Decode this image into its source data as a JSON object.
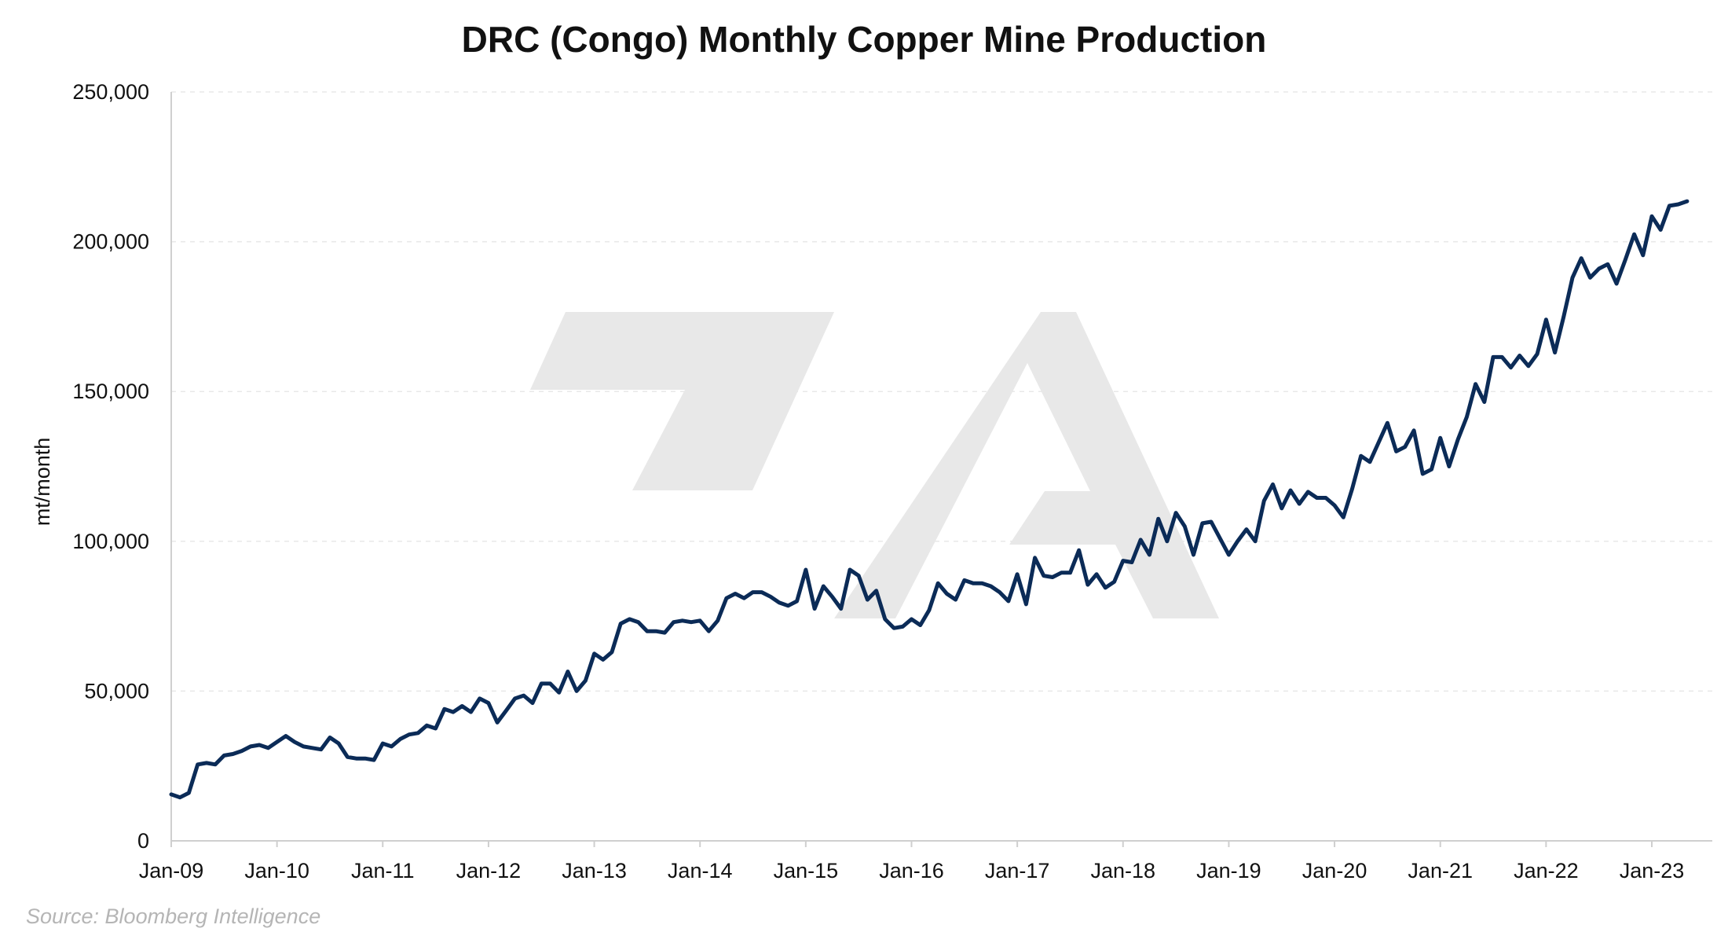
{
  "colors": {
    "series": "#0b2b57",
    "watermark": "#e8e8e8",
    "source": "#b5b5b5"
  },
  "watermark_icon": "logo-mark-icon",
  "chart_data": {
    "type": "line",
    "title": "DRC (Congo) Monthly Copper Mine Production",
    "ylabel": "mt/month",
    "xlabel": "",
    "source": "Source: Bloomberg Intelligence",
    "ylim": [
      0,
      250000
    ],
    "y_ticks": [
      0,
      50000,
      100000,
      150000,
      200000,
      250000
    ],
    "y_tick_labels": [
      "0",
      "50,000",
      "100,000",
      "150,000",
      "200,000",
      "250,000"
    ],
    "x_ticks": [
      "2009-01",
      "2010-01",
      "2011-01",
      "2012-01",
      "2013-01",
      "2014-01",
      "2015-01",
      "2016-01",
      "2017-01",
      "2018-01",
      "2019-01",
      "2020-01",
      "2021-01",
      "2022-01",
      "2023-01"
    ],
    "x_tick_labels": [
      "Jan-09",
      "Jan-10",
      "Jan-11",
      "Jan-12",
      "Jan-13",
      "Jan-14",
      "Jan-15",
      "Jan-16",
      "Jan-17",
      "Jan-18",
      "Jan-19",
      "Jan-20",
      "Jan-21",
      "Jan-22",
      "Jan-23"
    ],
    "grid": true,
    "start": "2009-01",
    "values": [
      15500,
      14500,
      16000,
      25500,
      26000,
      25500,
      28500,
      29000,
      30000,
      31500,
      32000,
      31000,
      33000,
      35000,
      33000,
      31500,
      31000,
      30500,
      34500,
      32500,
      28000,
      27500,
      27500,
      27000,
      32500,
      31500,
      34000,
      35500,
      36000,
      38500,
      37500,
      44000,
      43000,
      45000,
      43000,
      47500,
      46000,
      39500,
      43500,
      47500,
      48500,
      46000,
      52500,
      52500,
      49500,
      56500,
      50000,
      53500,
      62500,
      60500,
      63000,
      72500,
      74000,
      73000,
      70000,
      70000,
      69500,
      73000,
      73500,
      73000,
      73500,
      70000,
      73500,
      81000,
      82500,
      81000,
      83000,
      83000,
      81500,
      79500,
      78500,
      80000,
      90500,
      77500,
      85000,
      81500,
      77500,
      90500,
      88500,
      80500,
      83500,
      74000,
      71000,
      71500,
      74000,
      72000,
      77000,
      86000,
      82500,
      80500,
      87000,
      86000,
      86000,
      85000,
      83000,
      80000,
      89000,
      79000,
      94500,
      88500,
      88000,
      89500,
      89500,
      97000,
      85500,
      89000,
      84500,
      86500,
      93500,
      93000,
      100500,
      95500,
      107500,
      100000,
      109500,
      105000,
      95500,
      106000,
      106500,
      101000,
      95500,
      100000,
      104000,
      100000,
      113500,
      119000,
      111000,
      117000,
      112500,
      116500,
      114500,
      114500,
      112000,
      108000,
      117500,
      128500,
      126500,
      133000,
      139500,
      130000,
      131500,
      137000,
      122500,
      124000,
      134500,
      125000,
      134000,
      141500,
      152500,
      146500,
      161500,
      161500,
      158000,
      162000,
      158500,
      162500,
      174000,
      163000,
      175000,
      188000,
      194500,
      188000,
      191000,
      192500,
      186000,
      194000,
      202500,
      195500,
      208500,
      204000,
      212000,
      212500,
      213500
    ]
  }
}
